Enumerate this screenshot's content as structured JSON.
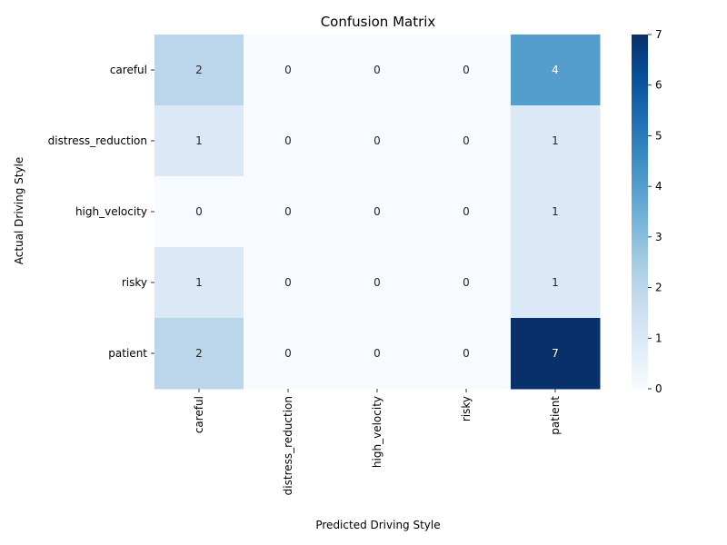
{
  "chart_data": {
    "type": "heatmap",
    "title": "Confusion Matrix",
    "xlabel": "Predicted Driving Style",
    "ylabel": "Actual Driving Style",
    "x_categories": [
      "careful",
      "distress_reduction",
      "high_velocity",
      "risky",
      "patient"
    ],
    "y_categories": [
      "careful",
      "distress_reduction",
      "high_velocity",
      "risky",
      "patient"
    ],
    "values": [
      [
        2,
        0,
        0,
        0,
        4
      ],
      [
        1,
        0,
        0,
        0,
        1
      ],
      [
        0,
        0,
        0,
        0,
        1
      ],
      [
        1,
        0,
        0,
        0,
        1
      ],
      [
        2,
        0,
        0,
        0,
        7
      ]
    ],
    "colorbar": {
      "min": 0,
      "max": 7,
      "ticks": [
        0,
        1,
        2,
        3,
        4,
        5,
        6,
        7
      ]
    },
    "colormap": "Blues",
    "colors": [
      "#f7fbff",
      "#deebf7",
      "#c6dbef",
      "#9ecae1",
      "#6baed6",
      "#4292c6",
      "#2171b5",
      "#08519c",
      "#08306b"
    ],
    "annotations": true
  }
}
